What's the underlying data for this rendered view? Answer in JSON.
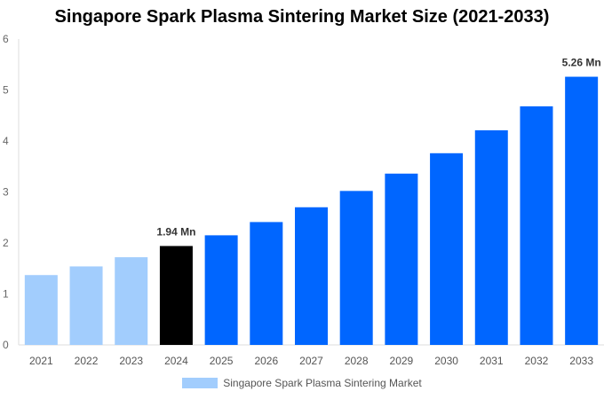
{
  "chart_data": {
    "type": "bar",
    "title": "Singapore Spark Plasma Sintering Market Size (2021-2033)",
    "categories": [
      "2021",
      "2022",
      "2023",
      "2024",
      "2025",
      "2026",
      "2027",
      "2028",
      "2029",
      "2030",
      "2031",
      "2032",
      "2033"
    ],
    "series": [
      {
        "name": "Singapore Spark Plasma Sintering Market",
        "values": [
          1.37,
          1.54,
          1.72,
          1.94,
          2.15,
          2.41,
          2.7,
          3.02,
          3.36,
          3.76,
          4.21,
          4.68,
          5.26
        ]
      }
    ],
    "bar_colors": [
      "#a2cdfd",
      "#a2cdfd",
      "#a2cdfd",
      "#000000",
      "#0066ff",
      "#0066ff",
      "#0066ff",
      "#0066ff",
      "#0066ff",
      "#0066ff",
      "#0066ff",
      "#0066ff",
      "#0066ff"
    ],
    "data_labels": [
      {
        "category": "2024",
        "text": "1.94 Mn"
      },
      {
        "category": "2033",
        "text": "5.26 Mn"
      }
    ],
    "yticks": [
      "0",
      "1",
      "2",
      "3",
      "4",
      "5",
      "6"
    ],
    "ylim": [
      0,
      6
    ],
    "grid": false,
    "legend_position": "bottom",
    "legend_color": "#a2cdfd"
  }
}
